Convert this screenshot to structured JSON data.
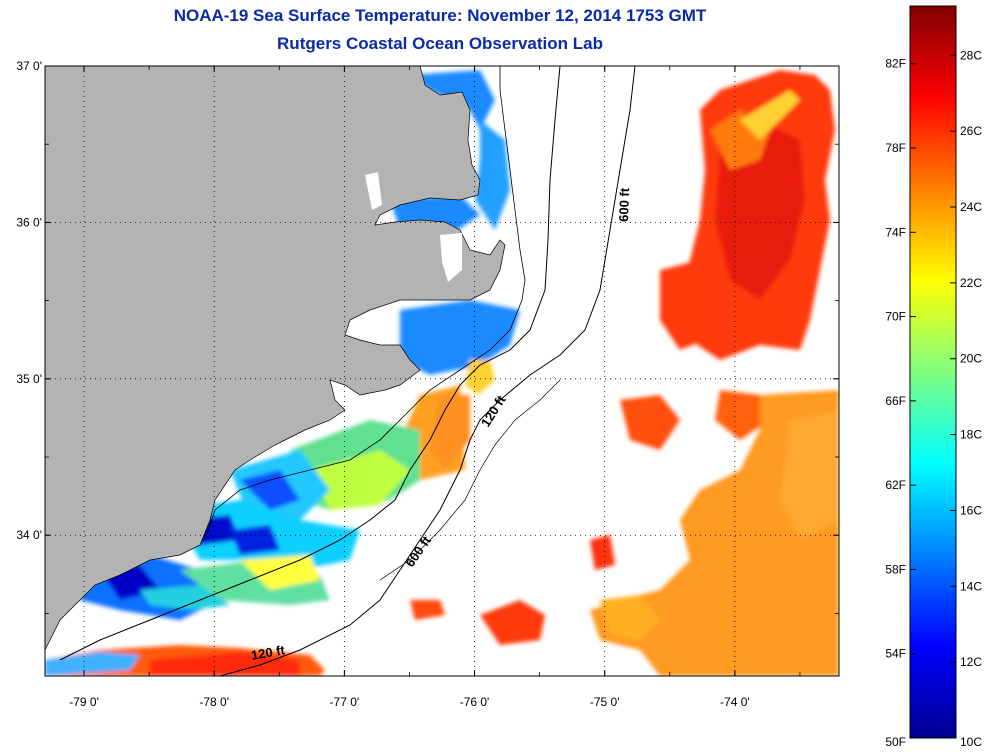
{
  "title": {
    "line1": "NOAA-19 Sea Surface Temperature:  November 12, 2014 1753 GMT",
    "line2": "Rutgers Coastal Ocean Observation Lab"
  },
  "map": {
    "lon_range": [
      -79.3,
      -73.2
    ],
    "lat_range": [
      33.1,
      37.0
    ],
    "lon_ticks": [
      {
        "value": -79,
        "label": "-79 0'"
      },
      {
        "value": -78,
        "label": "-78 0'"
      },
      {
        "value": -77,
        "label": "-77 0'"
      },
      {
        "value": -76,
        "label": "-76 0'"
      },
      {
        "value": -75,
        "label": "-75 0'"
      },
      {
        "value": -74,
        "label": "-74 0'"
      }
    ],
    "lat_ticks": [
      {
        "value": 37,
        "label": "37 0'"
      },
      {
        "value": 36,
        "label": "36 0'"
      },
      {
        "value": 35,
        "label": "35 0'"
      },
      {
        "value": 34,
        "label": "34 0'"
      }
    ],
    "grid": "dotted",
    "contour_labels": [
      "600 ft",
      "120 ft",
      "600 ft",
      "120 ft"
    ],
    "land_color": "#b3b3b3"
  },
  "colorbar": {
    "f_labels": [
      "82F",
      "78F",
      "74F",
      "70F",
      "66F",
      "62F",
      "58F",
      "54F",
      "50F"
    ],
    "c_labels": [
      "28C",
      "26C",
      "24C",
      "22C",
      "20C",
      "18C",
      "16C",
      "14C",
      "12C",
      "10C"
    ],
    "colors": [
      "#00008f",
      "#0000ff",
      "#0080ff",
      "#00ffff",
      "#80ff80",
      "#ffff00",
      "#ff8000",
      "#ff0000",
      "#800000"
    ]
  }
}
